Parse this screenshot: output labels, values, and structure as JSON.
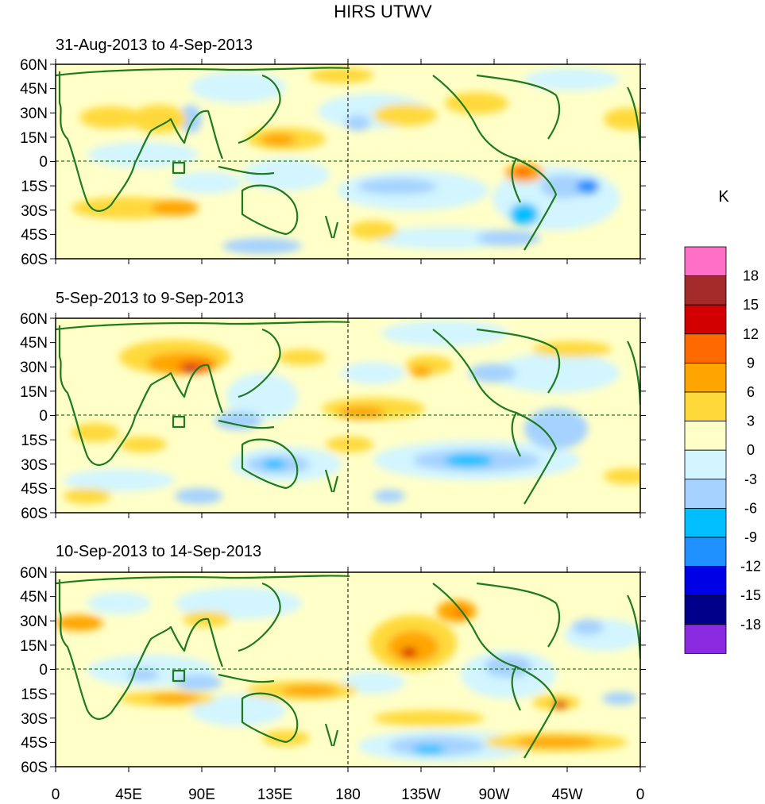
{
  "title": "HIRS UTWV",
  "panels": [
    {
      "label": "31-Aug-2013 to 4-Sep-2013"
    },
    {
      "label": "5-Sep-2013 to 9-Sep-2013"
    },
    {
      "label": "10-Sep-2013 to 14-Sep-2013"
    }
  ],
  "lat_ticks": [
    "60N",
    "45N",
    "30N",
    "15N",
    "0",
    "15S",
    "30S",
    "45S",
    "60S"
  ],
  "lon_ticks": [
    "0",
    "45E",
    "90E",
    "135E",
    "180",
    "135W",
    "90W",
    "45W",
    "0"
  ],
  "colorbar": {
    "unit": "K",
    "labels": [
      "18",
      "15",
      "12",
      "9",
      "6",
      "3",
      "0",
      "-3",
      "-6",
      "-9",
      "-12",
      "-15",
      "-18"
    ],
    "colors": [
      "#ff6ec7",
      "#a52a2a",
      "#d20000",
      "#ff6a00",
      "#ffa500",
      "#ffd93a",
      "#ffffc8",
      "#d2f5ff",
      "#a5d2ff",
      "#00beff",
      "#1e90ff",
      "#0000e6",
      "#00008b",
      "#8a2be2"
    ]
  },
  "colors": {
    "coast": "#1f7a1f",
    "pos_weak": "#ffffc8",
    "neg_weak": "#d2f5ff"
  }
}
